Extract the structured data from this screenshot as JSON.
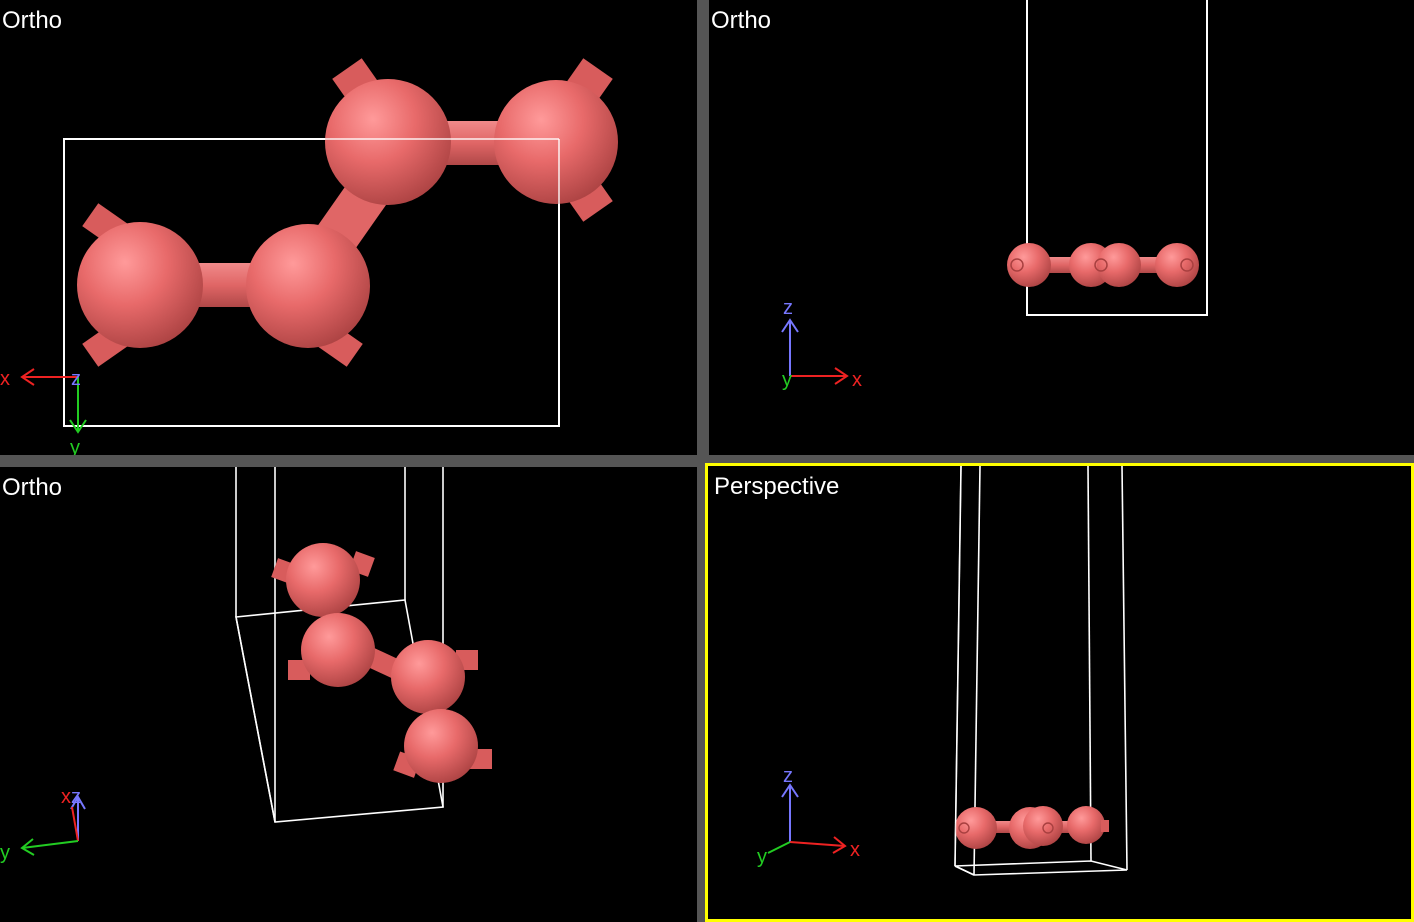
{
  "colors": {
    "atom": "#e86a6a",
    "cell": "#ffffff",
    "axis_x": "#ee2222",
    "axis_y": "#22cc22",
    "axis_z": "#7777ff",
    "active_border": "#ffff00",
    "divider": "#555555"
  },
  "viewports": {
    "top_left": {
      "label": "Ortho",
      "axes": {
        "a": "x",
        "b": "z",
        "c": "y"
      }
    },
    "top_right": {
      "label": "Ortho",
      "axes": {
        "a": "z",
        "b": "y",
        "c": "x"
      }
    },
    "bottom_left": {
      "label": "Ortho",
      "axes": {
        "a": "x",
        "b": "z",
        "c": "y"
      }
    },
    "bottom_right": {
      "label": "Perspective",
      "axes": {
        "a": "z",
        "b": "y",
        "c": "x"
      }
    }
  },
  "active_viewport": "bottom_right"
}
